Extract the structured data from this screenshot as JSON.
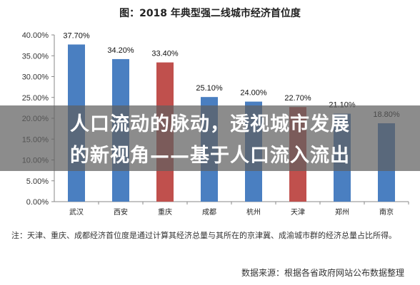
{
  "title": "图：2018 年典型强二线城市经济首位度",
  "banner": {
    "line1": "人口流动的脉动，透视城市发展",
    "line2": "的新视角——基于人口流入流出"
  },
  "note": "注：天津、重庆、成都经济首位度是通过计算其经济总量与其所在的京津冀、成渝城市群的经济总量占比所得。",
  "source": "数据来源：根据各省政府网站公布数据整理",
  "colors": {
    "blue": "#4a7fc1",
    "red": "#c0504d"
  },
  "chart_data": {
    "type": "bar",
    "title": "图：2018 年典型强二线城市经济首位度",
    "categories": [
      "武汉",
      "西安",
      "重庆",
      "成都",
      "杭州",
      "天津",
      "郑州",
      "南京"
    ],
    "values": [
      37.7,
      34.2,
      33.4,
      25.1,
      24.0,
      22.7,
      21.1,
      18.8
    ],
    "data_labels": [
      "37.70%",
      "34.20%",
      "33.40%",
      "25.10%",
      "24.00%",
      "22.70%",
      "21.10%",
      "18.80%"
    ],
    "bar_colors": [
      "blue",
      "blue",
      "red",
      "blue",
      "blue",
      "red",
      "blue",
      "blue"
    ],
    "y_ticks": [
      "0.00%",
      "5.00%",
      "10.00%",
      "15.00%",
      "20.00%",
      "25.00%",
      "30.00%",
      "35.00%",
      "40.00%"
    ],
    "ylim": [
      0,
      40
    ],
    "grid": false,
    "legend": "none"
  }
}
